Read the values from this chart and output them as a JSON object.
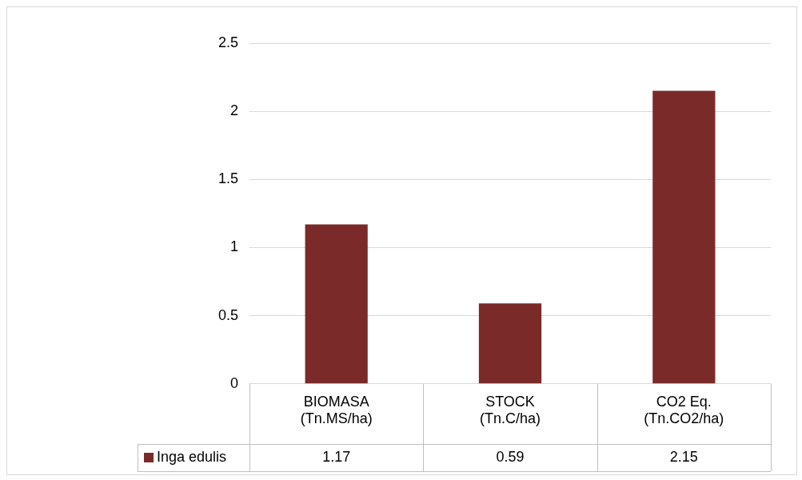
{
  "chart_data": {
    "type": "bar",
    "categories": [
      "BIOMASA (Tn.MS/ha)",
      "STOCK (Tn.C/ha)",
      "CO2 Eq. (Tn.CO2/ha)"
    ],
    "series": [
      {
        "name": "Inga edulis",
        "color": "#7b2a2a",
        "values": [
          1.17,
          0.59,
          2.15
        ]
      }
    ],
    "ylim": [
      0,
      2.5
    ],
    "yticks": [
      0,
      0.5,
      1,
      1.5,
      2,
      2.5
    ],
    "grid": "y",
    "legend": "bottom",
    "data_labels": true
  }
}
